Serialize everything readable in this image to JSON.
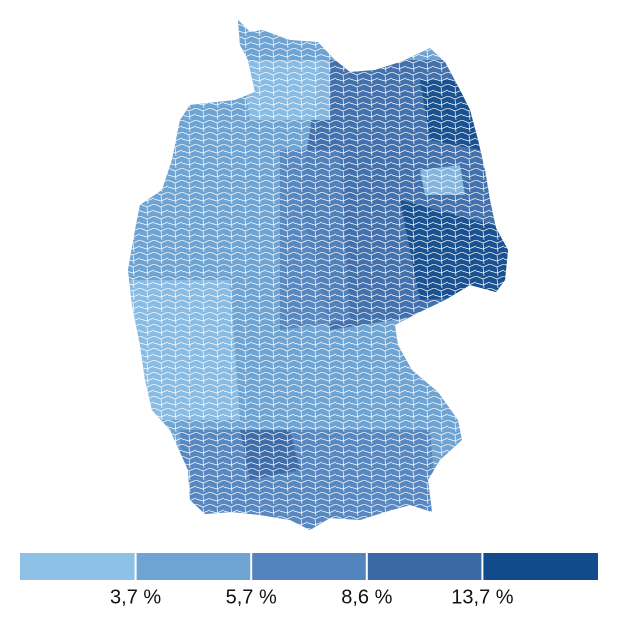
{
  "legend": {
    "colors": [
      "#8ec1e6",
      "#6ea4d3",
      "#5384bd",
      "#3b69a6",
      "#124b8c"
    ],
    "thresholds": [
      {
        "value": 3.7,
        "label": "3,7 %"
      },
      {
        "value": 5.7,
        "label": "5,7 %"
      },
      {
        "value": 8.6,
        "label": "8,6 %"
      },
      {
        "value": 13.7,
        "label": "13,7 %"
      }
    ]
  }
}
